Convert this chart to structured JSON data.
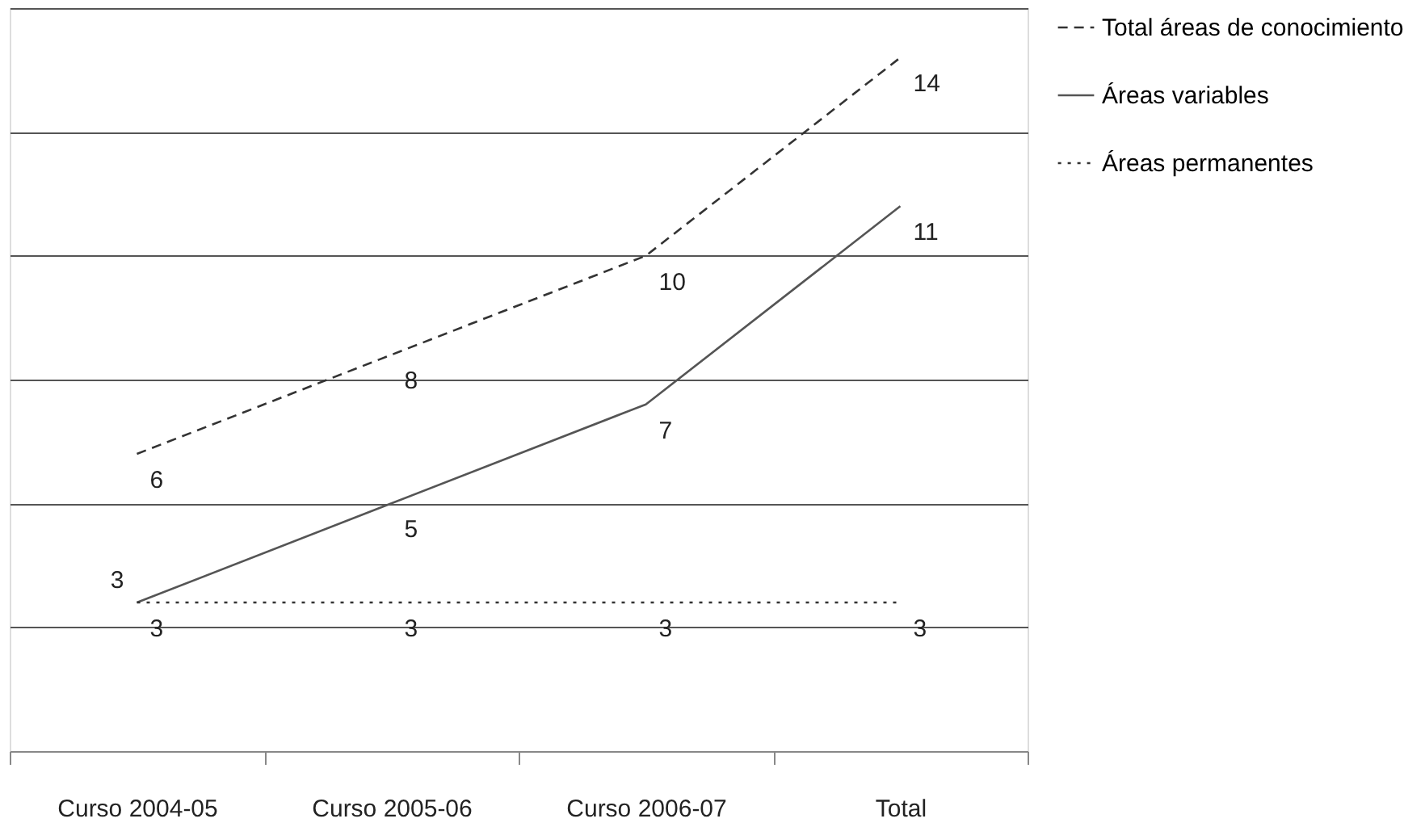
{
  "chart_data": {
    "type": "line",
    "categories": [
      "Curso 2004-05",
      "Curso 2005-06",
      "Curso 2006-07",
      "Total"
    ],
    "series": [
      {
        "name": "Total áreas de conocimiento",
        "color": "#333333",
        "line_style": "dashed",
        "values": [
          6,
          8,
          10,
          14
        ]
      },
      {
        "name": "Áreas variables",
        "color": "#555555",
        "line_style": "solid",
        "values": [
          3,
          5,
          7,
          11
        ]
      },
      {
        "name": "Áreas permanentes",
        "color": "#333333",
        "line_style": "dotted",
        "values": [
          3,
          3,
          3,
          3
        ]
      }
    ],
    "ylim": [
      0,
      15
    ],
    "yticks": [
      {
        "value": 0,
        "label": null
      },
      {
        "value": 2.5,
        "label": null
      },
      {
        "value": 5,
        "label": null
      },
      {
        "value": 7.5,
        "label": null
      },
      {
        "value": 10,
        "label": null
      },
      {
        "value": 12.5,
        "label": null
      },
      {
        "value": 15,
        "label": null
      }
    ],
    "tick_labels": "x",
    "grid": "y",
    "legend": "right",
    "data_labels": true,
    "marker": "none"
  }
}
